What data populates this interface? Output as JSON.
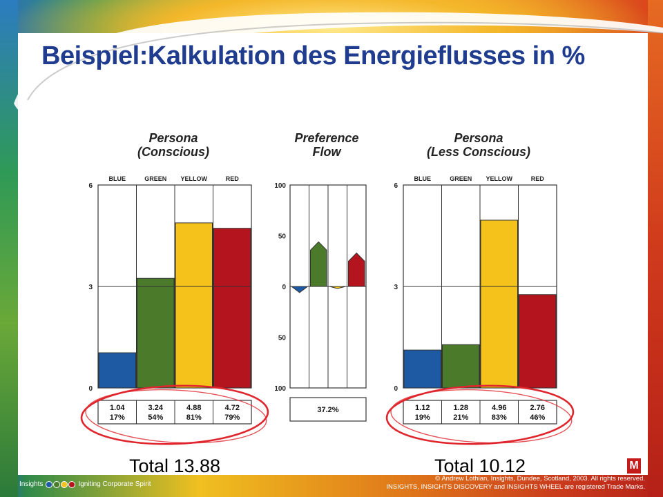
{
  "slide": {
    "title": "Beispiel:Kalkulation des Energieflusses in %",
    "footer_left_brand": "Insights",
    "footer_left_tagline": "Igniting Corporate Spirit",
    "footer_right_line1": "© Andrew Lothian, Insights, Dundee, Scotland, 2003. All rights reserved.",
    "footer_right_line2": "INSIGHTS, INSIGHTS DISCOVERY and INSIGHTS WHEEL are registered Trade Marks.",
    "logo_text": "M"
  },
  "colors": {
    "title": "#1f3c8f",
    "blue": "#1e5aa3",
    "green": "#4a7a2a",
    "yellow": "#f5c21b",
    "red": "#b3141d",
    "circle": "#e0262d"
  },
  "chart_data": [
    {
      "type": "bar",
      "title": "Persona\n(Conscious)",
      "categories": [
        "BLUE",
        "GREEN",
        "YELLOW",
        "RED"
      ],
      "values": [
        1.04,
        3.24,
        4.88,
        4.72
      ],
      "percent_labels": [
        "17%",
        "54%",
        "81%",
        "79%"
      ],
      "value_labels": [
        "1.04",
        "3.24",
        "4.88",
        "4.72"
      ],
      "ylim": [
        0,
        6
      ],
      "yticks": [
        "0",
        "3",
        "6"
      ],
      "total_label": "Total 13.88"
    },
    {
      "type": "bar",
      "title": "Preference\nFlow",
      "categories": [
        "BLUE",
        "GREEN",
        "YELLOW",
        "RED"
      ],
      "values": [
        -6,
        44,
        -2,
        33
      ],
      "ylim": [
        -100,
        100
      ],
      "yticks": [
        "100",
        "50",
        "0",
        "50",
        "100"
      ],
      "summary_label": "37.2%"
    },
    {
      "type": "bar",
      "title": "Persona\n(Less Conscious)",
      "categories": [
        "BLUE",
        "GREEN",
        "YELLOW",
        "RED"
      ],
      "values": [
        1.12,
        1.28,
        4.96,
        2.76
      ],
      "percent_labels": [
        "19%",
        "21%",
        "83%",
        "46%"
      ],
      "value_labels": [
        "1.12",
        "1.28",
        "4.96",
        "2.76"
      ],
      "ylim": [
        0,
        6
      ],
      "yticks": [
        "0",
        "3",
        "6"
      ],
      "total_label": "Total 10.12"
    }
  ]
}
